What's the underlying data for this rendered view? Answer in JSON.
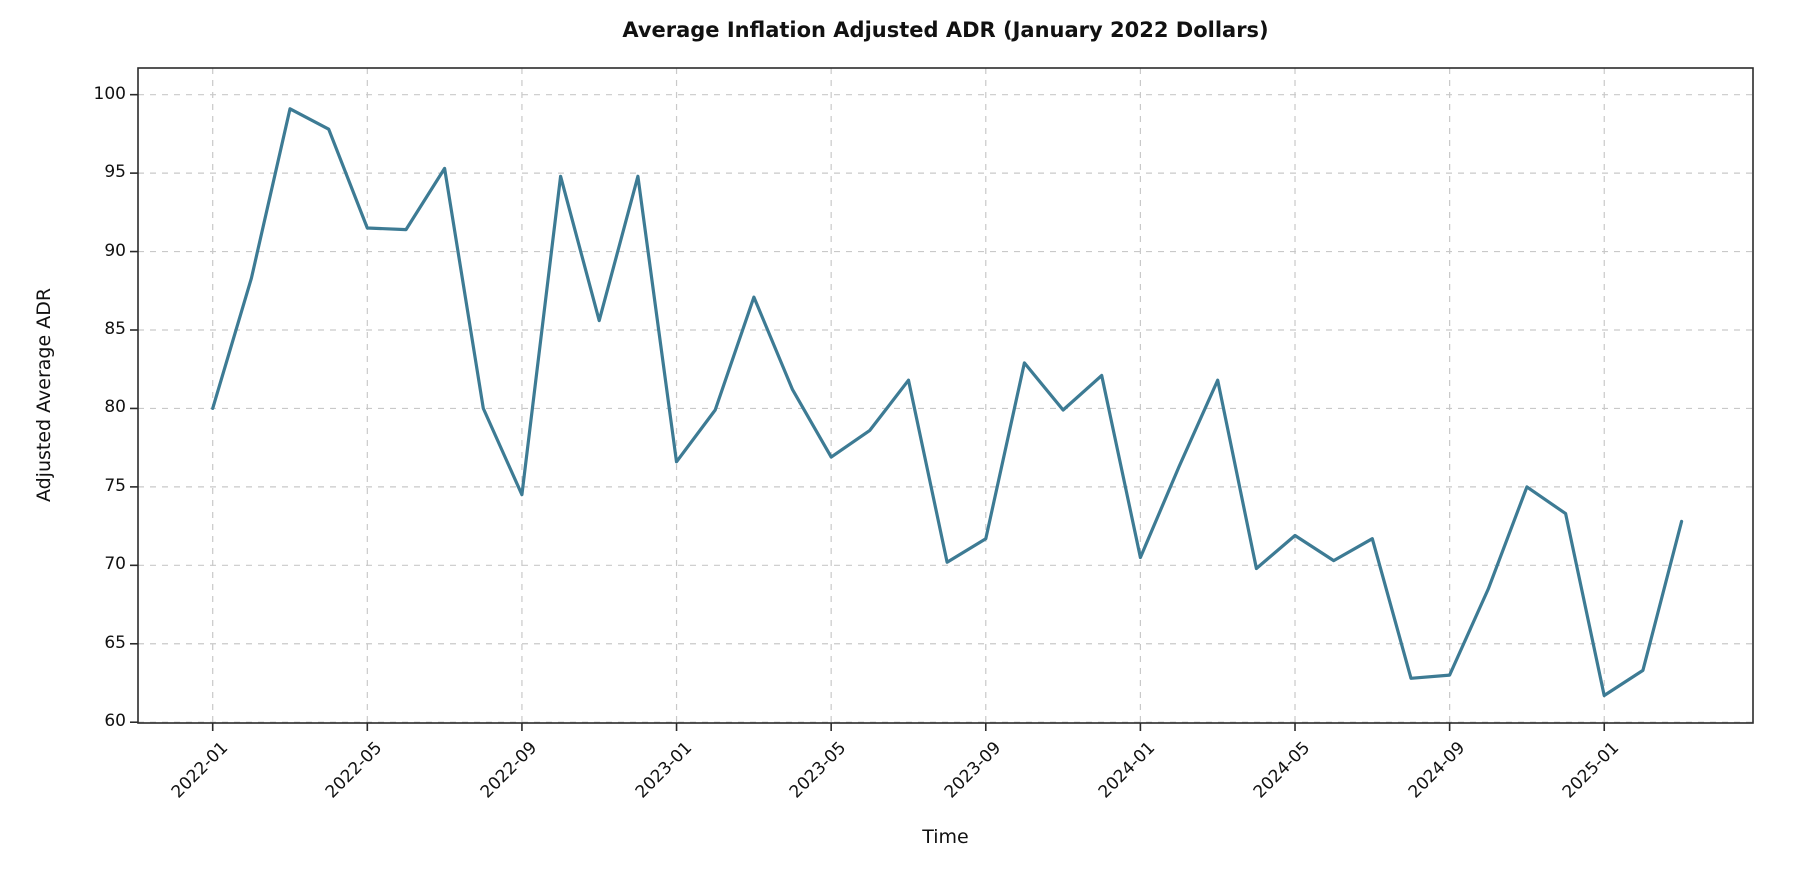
{
  "figure": {
    "background": "#ffffff"
  },
  "chart_data": {
    "type": "line",
    "title": "Average Inflation Adjusted ADR (January 2022 Dollars)",
    "xlabel": "Time",
    "ylabel": "Adjusted Average ADR",
    "line_color": "#3d7b94",
    "grid": true,
    "grid_color": "#c9c9c9",
    "spine_color": "#2b2b2b",
    "legend_position": "none",
    "ylim": [
      59.95,
      101.7
    ],
    "yticks": [
      60,
      65,
      70,
      75,
      80,
      85,
      90,
      95,
      100
    ],
    "xtick_labels": [
      "2022-01",
      "2022-05",
      "2022-09",
      "2023-01",
      "2023-05",
      "2023-09",
      "2024-01",
      "2024-05",
      "2024-09",
      "2025-01"
    ],
    "x": [
      "2022-01",
      "2022-02",
      "2022-03",
      "2022-04",
      "2022-05",
      "2022-06",
      "2022-07",
      "2022-08",
      "2022-09",
      "2022-10",
      "2022-11",
      "2022-12",
      "2023-01",
      "2023-02",
      "2023-03",
      "2023-04",
      "2023-05",
      "2023-06",
      "2023-07",
      "2023-08",
      "2023-09",
      "2023-10",
      "2023-11",
      "2023-12",
      "2024-01",
      "2024-02",
      "2024-03",
      "2024-04",
      "2024-05",
      "2024-06",
      "2024-07",
      "2024-08",
      "2024-09",
      "2024-10",
      "2024-11",
      "2024-12",
      "2025-01",
      "2025-02",
      "2025-03"
    ],
    "series": [
      {
        "name": "Adjusted Average ADR",
        "values": [
          80.0,
          88.3,
          99.1,
          97.8,
          91.5,
          91.4,
          95.3,
          80.0,
          74.5,
          94.8,
          85.6,
          94.8,
          76.6,
          79.9,
          87.1,
          81.2,
          76.9,
          78.6,
          81.8,
          70.2,
          71.7,
          82.9,
          79.9,
          82.1,
          70.5,
          76.3,
          81.8,
          69.8,
          71.9,
          70.3,
          71.7,
          62.8,
          63.0,
          68.5,
          75.0,
          73.3,
          61.7,
          63.3,
          72.8
        ]
      }
    ]
  }
}
